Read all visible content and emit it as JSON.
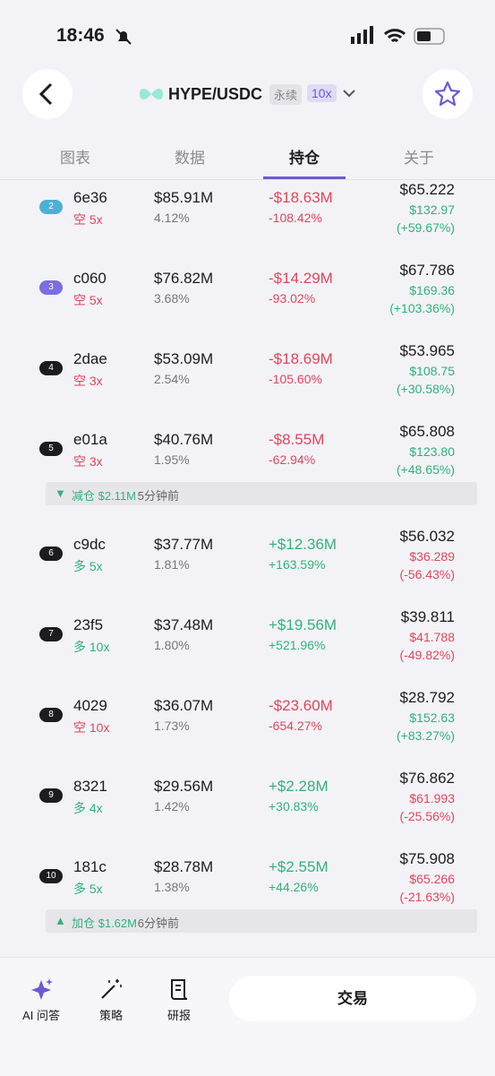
{
  "status": {
    "time": "18:46"
  },
  "header": {
    "pair": "HYPE/USDC",
    "tag": "永续",
    "leverage": "10x"
  },
  "tabs": {
    "items": [
      "图表",
      "数据",
      "持仓",
      "关于"
    ],
    "active": 2
  },
  "rows": [
    {
      "rank": "2",
      "badge_color": "#4bb1d6",
      "id": "6e36",
      "side": "空 5x",
      "size": "$85.91M",
      "share": "4.12%",
      "pnl": "-$18.63M",
      "pnl_pct": "-108.42%",
      "entry": "$65.222",
      "liq": "$132.97",
      "liq_pct": "(+59.67%)"
    },
    {
      "rank": "3",
      "badge_color": "#7b6ee0",
      "id": "c060",
      "side": "空 5x",
      "size": "$76.82M",
      "share": "3.68%",
      "pnl": "-$14.29M",
      "pnl_pct": "-93.02%",
      "entry": "$67.786",
      "liq": "$169.36",
      "liq_pct": "(+103.36%)"
    },
    {
      "rank": "4",
      "badge_color": "#1c1c1e",
      "id": "2dae",
      "side": "空 3x",
      "size": "$53.09M",
      "share": "2.54%",
      "pnl": "-$18.69M",
      "pnl_pct": "-105.60%",
      "entry": "$53.965",
      "liq": "$108.75",
      "liq_pct": "(+30.58%)"
    },
    {
      "rank": "5",
      "badge_color": "#1c1c1e",
      "id": "e01a",
      "side": "空 3x",
      "size": "$40.76M",
      "share": "1.95%",
      "pnl": "-$8.55M",
      "pnl_pct": "-62.94%",
      "entry": "$65.808",
      "liq": "$123.80",
      "liq_pct": "(+48.65%)"
    },
    {
      "rank": "6",
      "badge_color": "#1c1c1e",
      "id": "c9dc",
      "side": "多 5x",
      "size": "$37.77M",
      "share": "1.81%",
      "pnl": "+$12.36M",
      "pnl_pct": "+163.59%",
      "entry": "$56.032",
      "liq": "$36.289",
      "liq_pct": "(-56.43%)"
    },
    {
      "rank": "7",
      "badge_color": "#1c1c1e",
      "id": "23f5",
      "side": "多 10x",
      "size": "$37.48M",
      "share": "1.80%",
      "pnl": "+$19.56M",
      "pnl_pct": "+521.96%",
      "entry": "$39.811",
      "liq": "$41.788",
      "liq_pct": "(-49.82%)"
    },
    {
      "rank": "8",
      "badge_color": "#1c1c1e",
      "id": "4029",
      "side": "空 10x",
      "size": "$36.07M",
      "share": "1.73%",
      "pnl": "-$23.60M",
      "pnl_pct": "-654.27%",
      "entry": "$28.792",
      "liq": "$152.63",
      "liq_pct": "(+83.27%)"
    },
    {
      "rank": "9",
      "badge_color": "#1c1c1e",
      "id": "8321",
      "side": "多 4x",
      "size": "$29.56M",
      "share": "1.42%",
      "pnl": "+$2.28M",
      "pnl_pct": "+30.83%",
      "entry": "$76.862",
      "liq": "$61.993",
      "liq_pct": "(-25.56%)"
    },
    {
      "rank": "10",
      "badge_color": "#1c1c1e",
      "id": "181c",
      "side": "多 5x",
      "size": "$28.78M",
      "share": "1.38%",
      "pnl": "+$2.55M",
      "pnl_pct": "+44.26%",
      "entry": "$75.908",
      "liq": "$65.266",
      "liq_pct": "(-21.63%)"
    }
  ],
  "notices": [
    {
      "after_row": 3,
      "icon": "▼",
      "action": "减仓 $2.11M",
      "time": "5分钟前"
    },
    {
      "after_row": 8,
      "icon": "▲",
      "action": "加仓 $1.62M",
      "time": "6分钟前"
    }
  ],
  "bottom": {
    "items": [
      "AI 问答",
      "策略",
      "研报"
    ],
    "trade": "交易"
  }
}
